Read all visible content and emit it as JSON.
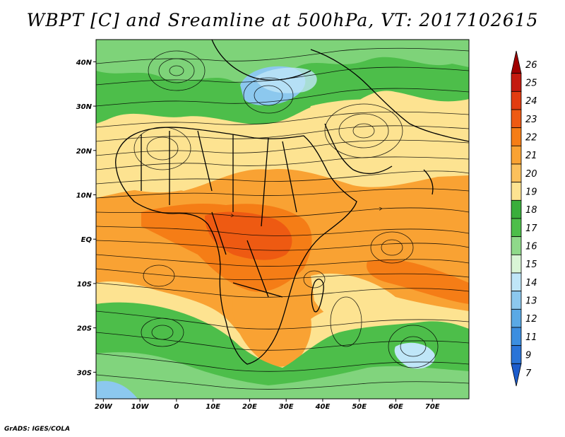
{
  "title": "WBPT [C] and Sreamline at 500hPa, VT: 2017102615",
  "credit": "GrADS: IGES/COLA",
  "map": {
    "type": "heatmap",
    "region": "Africa / Indian Ocean",
    "lon_range": [
      -22,
      80
    ],
    "lat_range": [
      -36,
      45
    ],
    "x_ticks": [
      {
        "lon": -20,
        "label": "20W"
      },
      {
        "lon": -10,
        "label": "10W"
      },
      {
        "lon": 0,
        "label": "0"
      },
      {
        "lon": 10,
        "label": "10E"
      },
      {
        "lon": 20,
        "label": "20E"
      },
      {
        "lon": 30,
        "label": "30E"
      },
      {
        "lon": 40,
        "label": "40E"
      },
      {
        "lon": 50,
        "label": "50E"
      },
      {
        "lon": 60,
        "label": "60E"
      },
      {
        "lon": 70,
        "label": "70E"
      }
    ],
    "y_ticks": [
      {
        "lat": 40,
        "label": "40N"
      },
      {
        "lat": 30,
        "label": "30N"
      },
      {
        "lat": 20,
        "label": "20N"
      },
      {
        "lat": 10,
        "label": "10N"
      },
      {
        "lat": 0,
        "label": "EQ"
      },
      {
        "lat": -10,
        "label": "10S"
      },
      {
        "lat": -20,
        "label": "20S"
      },
      {
        "lat": -30,
        "label": "30S"
      }
    ]
  },
  "colorbar": {
    "levels": [
      {
        "label": "26",
        "color": "#a00000"
      },
      {
        "label": "25",
        "color": "#c41a0f"
      },
      {
        "label": "24",
        "color": "#e23c10"
      },
      {
        "label": "23",
        "color": "#ee5a12"
      },
      {
        "label": "22",
        "color": "#f57d16"
      },
      {
        "label": "21",
        "color": "#f9a233"
      },
      {
        "label": "20",
        "color": "#fbc05c"
      },
      {
        "label": "19",
        "color": "#fde391"
      },
      {
        "label": "18",
        "color": "#3aae3c"
      },
      {
        "label": "17",
        "color": "#4dbe4a"
      },
      {
        "label": "16",
        "color": "#8fd98a"
      },
      {
        "label": "15",
        "color": "#d9f5d6"
      },
      {
        "label": "14",
        "color": "#bfe6f8"
      },
      {
        "label": "13",
        "color": "#8cc8ee"
      },
      {
        "label": "12",
        "color": "#5aa9e5"
      },
      {
        "label": "11",
        "color": "#3c8ee0"
      },
      {
        "label": "9",
        "color": "#2a74d8"
      },
      {
        "label": "7",
        "color": "#1c5ccc"
      }
    ]
  }
}
